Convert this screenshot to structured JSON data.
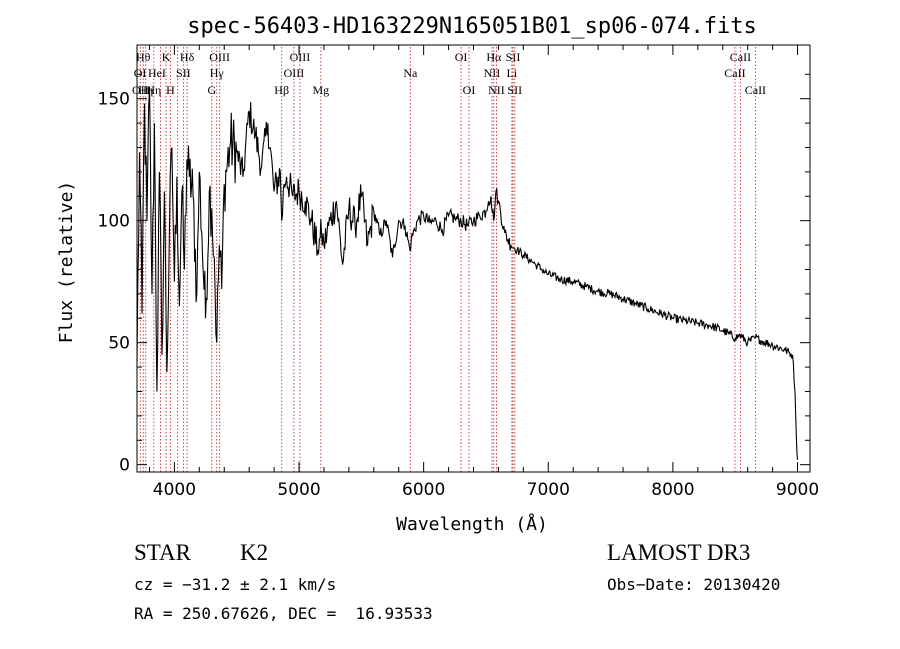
{
  "chart_data": {
    "type": "line",
    "title": "spec-56403-HD163229N165051B01_sp06-074.fits",
    "xlabel": "Wavelength (Å)",
    "ylabel": "Flux (relative)",
    "xlim": [
      3700,
      9100
    ],
    "ylim": [
      -3,
      172
    ],
    "xticks": [
      4000,
      5000,
      6000,
      7000,
      8000,
      9000
    ],
    "xtick_labels": [
      "4000",
      "5000",
      "6000",
      "7000",
      "8000",
      "9000"
    ],
    "yticks": [
      0,
      50,
      100,
      150
    ],
    "ytick_labels": [
      "0",
      "50",
      "100",
      "150"
    ],
    "series": [
      {
        "name": "spectrum",
        "x": [
          3700,
          3720,
          3740,
          3760,
          3780,
          3800,
          3820,
          3840,
          3860,
          3880,
          3900,
          3920,
          3940,
          3960,
          3980,
          4000,
          4020,
          4040,
          4060,
          4080,
          4100,
          4120,
          4150,
          4180,
          4200,
          4220,
          4250,
          4280,
          4300,
          4320,
          4340,
          4360,
          4380,
          4400,
          4450,
          4500,
          4550,
          4600,
          4650,
          4700,
          4750,
          4800,
          4850,
          4861,
          4880,
          4900,
          4950,
          5000,
          5050,
          5100,
          5150,
          5170,
          5180,
          5200,
          5250,
          5300,
          5350,
          5400,
          5450,
          5500,
          5550,
          5600,
          5650,
          5700,
          5750,
          5800,
          5850,
          5890,
          5900,
          5950,
          6000,
          6050,
          6100,
          6150,
          6200,
          6250,
          6300,
          6350,
          6400,
          6450,
          6500,
          6520,
          6540,
          6562,
          6580,
          6600,
          6650,
          6700,
          6750,
          6800,
          6850,
          6900,
          6950,
          7000,
          7100,
          7200,
          7300,
          7400,
          7500,
          7600,
          7700,
          7800,
          7900,
          8000,
          8100,
          8200,
          8300,
          8400,
          8500,
          8540,
          8600,
          8662,
          8700,
          8800,
          8900,
          8960,
          8980,
          8990,
          9000
        ],
        "y": [
          42,
          128,
          62,
          148,
          100,
          155,
          70,
          140,
          30,
          120,
          45,
          112,
          38,
          95,
          130,
          75,
          118,
          65,
          112,
          80,
          125,
          118,
          110,
          70,
          120,
          95,
          60,
          112,
          105,
          85,
          50,
          90,
          72,
          115,
          132,
          128,
          118,
          145,
          135,
          122,
          140,
          112,
          120,
          100,
          115,
          118,
          110,
          112,
          108,
          100,
          88,
          93,
          95,
          90,
          100,
          108,
          82,
          105,
          98,
          110,
          90,
          104,
          94,
          100,
          85,
          100,
          98,
          88,
          92,
          100,
          102,
          99,
          100,
          96,
          102,
          101,
          100,
          98,
          100,
          102,
          104,
          108,
          110,
          100,
          112,
          108,
          95,
          90,
          88,
          86,
          84,
          82,
          80,
          78,
          76,
          75,
          73,
          71,
          70,
          68,
          66,
          64,
          62,
          60,
          59,
          58,
          57,
          55,
          52,
          53,
          50,
          52,
          51,
          49,
          47,
          45,
          30,
          12,
          2
        ]
      }
    ],
    "line_groups": [
      {
        "color": "#c83232",
        "lines": [
          {
            "wave": 3727,
            "label": "OII",
            "row": 3
          },
          {
            "wave": 3750,
            "label": "Hθ",
            "row": 1
          },
          {
            "wave": 3770,
            "label": "Hη",
            "row": 3
          },
          {
            "wave": 3835,
            "label": "Hη",
            "row": 3
          },
          {
            "wave": 3889,
            "label": "",
            "row": 0
          },
          {
            "wave": 3933,
            "label": "K",
            "row": 1
          },
          {
            "wave": 3968,
            "label": "H",
            "row": 3
          },
          {
            "wave": 4026,
            "label": "",
            "row": 0
          },
          {
            "wave": 4072,
            "label": "SII",
            "row": 2
          },
          {
            "wave": 4102,
            "label": "Hδ",
            "row": 1
          },
          {
            "wave": 4300,
            "label": "G",
            "row": 3
          },
          {
            "wave": 4340,
            "label": "Hγ",
            "row": 2
          },
          {
            "wave": 4363,
            "label": "OIII",
            "row": 1
          },
          {
            "wave": 4861,
            "label": "Hβ",
            "row": 3
          },
          {
            "wave": 4959,
            "label": "OIII",
            "row": 2
          },
          {
            "wave": 5007,
            "label": "OIII",
            "row": 1
          },
          {
            "wave": 5175,
            "label": "Mg",
            "row": 3
          },
          {
            "wave": 5893,
            "label": "Na",
            "row": 2
          },
          {
            "wave": 6300,
            "label": "OI",
            "row": 1
          },
          {
            "wave": 6364,
            "label": "OI",
            "row": 3
          },
          {
            "wave": 6548,
            "label": "NII",
            "row": 2
          },
          {
            "wave": 6563,
            "label": "Hα",
            "row": 1
          },
          {
            "wave": 6584,
            "label": "NII",
            "row": 3
          },
          {
            "wave": 6708,
            "label": "Li",
            "row": 2
          },
          {
            "wave": 6717,
            "label": "SII",
            "row": 1
          },
          {
            "wave": 6731,
            "label": "SII",
            "row": 3
          },
          {
            "wave": 8498,
            "label": "CaII",
            "row": 2
          },
          {
            "wave": 8542,
            "label": "CaII",
            "row": 1
          },
          {
            "wave": 8662,
            "label": "CaII",
            "row": 3
          }
        ]
      }
    ],
    "extra_labels": [
      {
        "text": "OI",
        "wave": 3725,
        "row": 2
      },
      {
        "text": "HeI",
        "wave": 3860,
        "row": 2
      }
    ]
  },
  "info": {
    "object_class": "STAR",
    "subclass": "K2",
    "survey": "LAMOST DR3",
    "cz": "cz = −31.2 ± 2.1 km/s",
    "obs_date": "Obs−Date: 20130420",
    "coords": "RA = 250.67626, DEC =  16.93533"
  }
}
